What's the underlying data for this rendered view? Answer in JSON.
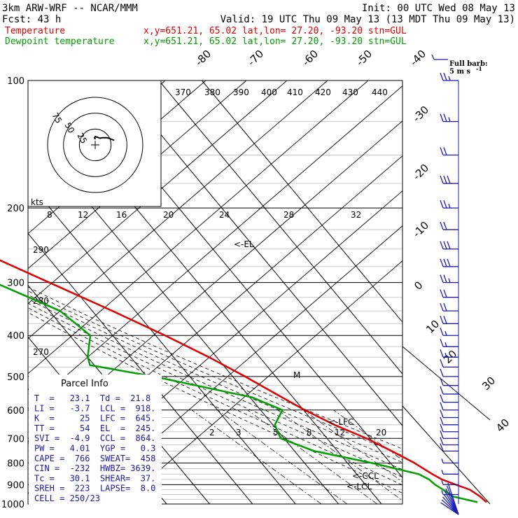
{
  "header": {
    "line1_left": "3km ARW-WRF -- NCAR/MMM",
    "line1_right": "Init: 00 UTC Wed 08 May 13",
    "line2_left": "Fcst:   43 h",
    "line2_right": "Valid: 19 UTC Thu 09 May 13 (13 MDT Thu 09 May 13)"
  },
  "legend": [
    {
      "name": "Temperature",
      "info": "x,y=651.21, 65.02   lat,lon= 27.20, -93.20  stn=GUL",
      "color": "#e00000"
    },
    {
      "name": "Dewpoint temperature",
      "info": "x,y=651.21, 65.02   lat,lon= 27.20, -93.20  stn=GUL",
      "color": "#00a000"
    }
  ],
  "barb_legend": {
    "title": "Full barb:",
    "value": "5 m s",
    "exp": "-1"
  },
  "hodograph": {
    "unit": "kts",
    "rings": [
      "75",
      "50",
      "25"
    ]
  },
  "parcel_info": {
    "title": "Parcel Info",
    "rows": [
      "T  =   23.1  Td =  21.8",
      "LI =   -3.7  LCL =  918.",
      "K  =     25  LFC =  645.",
      "TT =     54  EL  =  245.",
      "SVI =  -4.9  CCL =  864.",
      "PW =   4.01  YGP =   0.3",
      "CAPE =  766  SWEAT=  458",
      "CIN =  -232  HWBZ= 3639.",
      "Tc =   30.1  SHEAR=  37.",
      "SREH =  223  LAPSE=  8.0",
      "CELL = 250/23"
    ]
  },
  "level_markers": [
    "<-EL",
    "<-LFC",
    "<-CCL",
    "<-LCL",
    "M"
  ],
  "chart_data": {
    "type": "line",
    "title": "",
    "y_axis": {
      "label": "",
      "scale": "log-pressure",
      "unit": "hPa",
      "range": [
        1000,
        100
      ],
      "ticks": [
        100,
        200,
        300,
        400,
        500,
        600,
        700,
        800,
        900,
        1000
      ]
    },
    "isotherm_labels": [
      "-80",
      "-70",
      "-60",
      "-50",
      "-40",
      "-30",
      "-20",
      "-10",
      "0",
      "10",
      "20",
      "30",
      "40"
    ],
    "theta_labels": [
      "370",
      "380",
      "390",
      "400",
      "410",
      "420",
      "430",
      "440",
      "290",
      "280",
      "270"
    ],
    "theta_e_labels": [
      "8",
      "12",
      "16",
      "20",
      "24",
      "28",
      "32"
    ],
    "mixing_ratio_labels": [
      "2",
      "3",
      "5",
      "8",
      "12",
      "20"
    ],
    "series": [
      {
        "name": "Temperature",
        "color": "#e00000",
        "units": "degC",
        "points": [
          {
            "p": 990,
            "t": 24.8
          },
          {
            "p": 960,
            "t": 24.4
          },
          {
            "p": 925,
            "t": 23.3
          },
          {
            "p": 900,
            "t": 21.0
          },
          {
            "p": 875,
            "t": 18.8
          },
          {
            "p": 850,
            "t": 17.6
          },
          {
            "p": 800,
            "t": 15.6
          },
          {
            "p": 750,
            "t": 12.6
          },
          {
            "p": 700,
            "t": 9.2
          },
          {
            "p": 650,
            "t": 4.3
          },
          {
            "p": 600,
            "t": 0.3
          },
          {
            "p": 550,
            "t": -3.3
          },
          {
            "p": 500,
            "t": -7.1
          },
          {
            "p": 450,
            "t": -11.8
          },
          {
            "p": 400,
            "t": -17.8
          },
          {
            "p": 350,
            "t": -25.3
          },
          {
            "p": 300,
            "t": -34.5
          },
          {
            "p": 250,
            "t": -45.3
          },
          {
            "p": 200,
            "t": -54.6
          },
          {
            "p": 175,
            "t": -61.0
          },
          {
            "p": 150,
            "t": -68.0
          },
          {
            "p": 125,
            "t": -71.0
          },
          {
            "p": 110,
            "t": -72.0
          },
          {
            "p": 100,
            "t": -73.6
          }
        ]
      },
      {
        "name": "Dewpoint temperature",
        "color": "#00a000",
        "units": "degC",
        "points": [
          {
            "p": 990,
            "t": 22.7
          },
          {
            "p": 960,
            "t": 18.1
          },
          {
            "p": 925,
            "t": 17.1
          },
          {
            "p": 900,
            "t": 16.2
          },
          {
            "p": 875,
            "t": 15.8
          },
          {
            "p": 850,
            "t": 14.4
          },
          {
            "p": 800,
            "t": 5.7
          },
          {
            "p": 750,
            "t": -5.4
          },
          {
            "p": 700,
            "t": -10.8
          },
          {
            "p": 650,
            "t": -9.5
          },
          {
            "p": 600,
            "t": -4.9
          },
          {
            "p": 560,
            "t": -9.5
          },
          {
            "p": 500,
            "t": -28.3
          },
          {
            "p": 470,
            "t": -41.0
          },
          {
            "p": 450,
            "t": -40.0
          },
          {
            "p": 400,
            "t": -35.2
          },
          {
            "p": 350,
            "t": -37.5
          },
          {
            "p": 300,
            "t": -47.2
          },
          {
            "p": 250,
            "t": -57.2
          },
          {
            "p": 200,
            "t": -66.5
          },
          {
            "p": 160,
            "t": -76.2
          },
          {
            "p": 140,
            "t": -85.5
          },
          {
            "p": 120,
            "t": -86.3
          },
          {
            "p": 100,
            "t": -85.7
          }
        ]
      }
    ],
    "hodograph_trace": [
      {
        "u": 0,
        "v": 0
      },
      {
        "u": -1,
        "v": 3
      },
      {
        "u": 0,
        "v": 5
      },
      {
        "u": 4,
        "v": 4
      },
      {
        "u": 9,
        "v": 2
      },
      {
        "u": 14,
        "v": 3
      },
      {
        "u": 21,
        "v": 3
      },
      {
        "u": 26,
        "v": 2
      },
      {
        "u": 31,
        "v": 0
      },
      {
        "u": 36,
        "v": -2
      }
    ],
    "hodograph_max": 90,
    "wind_barbs": [
      {
        "p": 100,
        "full": 2,
        "half": 1,
        "flag": 0
      },
      {
        "p": 125,
        "full": 2,
        "half": 1,
        "flag": 0
      },
      {
        "p": 150,
        "full": 2,
        "half": 0,
        "flag": 0
      },
      {
        "p": 175,
        "full": 3,
        "half": 0,
        "flag": 0
      },
      {
        "p": 200,
        "full": 2,
        "half": 1,
        "flag": 0
      },
      {
        "p": 225,
        "full": 2,
        "half": 0,
        "flag": 0
      },
      {
        "p": 250,
        "full": 3,
        "half": 0,
        "flag": 0
      },
      {
        "p": 275,
        "full": 3,
        "half": 0,
        "flag": 0
      },
      {
        "p": 300,
        "full": 2,
        "half": 1,
        "flag": 0
      },
      {
        "p": 325,
        "full": 2,
        "half": 0,
        "flag": 0
      },
      {
        "p": 350,
        "full": 2,
        "half": 0,
        "flag": 0
      },
      {
        "p": 375,
        "full": 2,
        "half": 0,
        "flag": 0
      },
      {
        "p": 400,
        "full": 1,
        "half": 1,
        "flag": 0
      },
      {
        "p": 425,
        "full": 1,
        "half": 1,
        "flag": 0
      },
      {
        "p": 450,
        "full": 1,
        "half": 1,
        "flag": 0
      },
      {
        "p": 475,
        "full": 1,
        "half": 0,
        "flag": 0
      },
      {
        "p": 500,
        "full": 1,
        "half": 0,
        "flag": 0
      },
      {
        "p": 525,
        "full": 1,
        "half": 0,
        "flag": 0
      },
      {
        "p": 550,
        "full": 1,
        "half": 0,
        "flag": 0
      },
      {
        "p": 575,
        "full": 1,
        "half": 0,
        "flag": 0
      },
      {
        "p": 600,
        "full": 1,
        "half": 0,
        "flag": 0
      },
      {
        "p": 625,
        "full": 1,
        "half": 0,
        "flag": 0
      },
      {
        "p": 650,
        "full": 1,
        "half": 0,
        "flag": 0
      },
      {
        "p": 675,
        "full": 1,
        "half": 0,
        "flag": 0
      },
      {
        "p": 700,
        "full": 1,
        "half": 0,
        "flag": 0
      },
      {
        "p": 725,
        "full": 1,
        "half": 0,
        "flag": 0
      },
      {
        "p": 750,
        "full": 1,
        "half": 0,
        "flag": 0
      },
      {
        "p": 800,
        "full": 0,
        "half": 1,
        "flag": 0
      },
      {
        "p": 850,
        "full": 0,
        "half": 1,
        "flag": 0
      },
      {
        "p": 900,
        "full": 0,
        "half": 1,
        "flag": 0
      },
      {
        "p": 950,
        "full": 0,
        "half": 1,
        "flag": 0
      }
    ]
  }
}
